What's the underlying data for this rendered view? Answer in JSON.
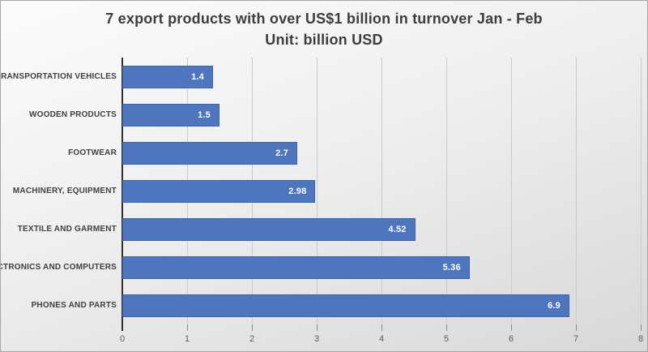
{
  "chart_data": {
    "type": "bar",
    "orientation": "horizontal",
    "title": "7 export products with over US$1 billion in turnover Jan - Feb",
    "subtitle": "Unit: billion USD",
    "categories": [
      "TRANSPORTATION VEHICLES",
      "WOODEN PRODUCTS",
      "FOOTWEAR",
      "MACHINERY, EQUIPMENT",
      "TEXTILE AND GARMENT",
      "ELECTRONICS AND COMPUTERS",
      "PHONES AND PARTS"
    ],
    "values": [
      1.4,
      1.5,
      2.7,
      2.98,
      4.52,
      5.36,
      6.9
    ],
    "value_labels": [
      "1.4",
      "1.5",
      "2.7",
      "2.98",
      "4.52",
      "5.36",
      "6.9"
    ],
    "xlabel": "",
    "ylabel": "",
    "xlim": [
      0,
      8
    ],
    "x_ticks": [
      0,
      1,
      2,
      3,
      4,
      5,
      6,
      7,
      8
    ],
    "grid": true,
    "legend": false,
    "colors": {
      "bar_fill": "#4D76BE",
      "bar_border": "#3C63AC",
      "value_label_text": "#FFFFFF",
      "title_text": "#3D3D3D",
      "category_text": "#3F3F3F",
      "tick_text": "#595959",
      "gridline": "#CBCBCB",
      "tick_mark": "#8C8C8C",
      "axis_line": "#2F2F2F",
      "frame_border": "#A6A6A6"
    }
  }
}
